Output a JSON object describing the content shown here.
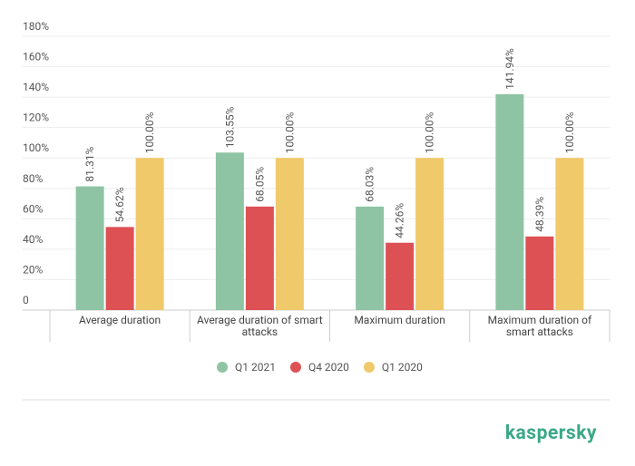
{
  "chart_data": {
    "type": "bar",
    "categories": [
      "Average duration",
      "Average duration of smart attacks",
      "Maximum duration",
      "Maximum duration of smart attacks"
    ],
    "series": [
      {
        "name": "Q1 2021",
        "color": "#8ec4a4",
        "values": [
          81.31,
          103.55,
          68.03,
          141.94
        ],
        "value_labels": [
          "81.31%",
          "103.55%",
          "68.03%",
          "141.94%"
        ]
      },
      {
        "name": "Q4 2020",
        "color": "#dd5155",
        "values": [
          54.62,
          68.05,
          44.26,
          48.39
        ],
        "value_labels": [
          "54.62%",
          "68.05%",
          "44.26%",
          "48.39%"
        ]
      },
      {
        "name": "Q1 2020",
        "color": "#f0c96a",
        "values": [
          100.0,
          100.0,
          100.0,
          100.0
        ],
        "value_labels": [
          "100.00%",
          "100.00%",
          "100.00%",
          "100.00%"
        ]
      }
    ],
    "ylim": [
      0,
      180
    ],
    "yticks": [
      0,
      {
        "value": 20,
        "label": "20%"
      },
      {
        "value": 40,
        "label": "40%"
      },
      {
        "value": 60,
        "label": "60%"
      },
      {
        "value": 80,
        "label": "80%"
      },
      {
        "value": 100,
        "label": "100%"
      },
      {
        "value": 120,
        "label": "120%"
      },
      {
        "value": 140,
        "label": "140%"
      },
      {
        "value": 160,
        "label": "160%"
      },
      {
        "value": 180,
        "label": "180%"
      }
    ],
    "grid": true,
    "legend": "bottom"
  },
  "brand": "kaspersky"
}
